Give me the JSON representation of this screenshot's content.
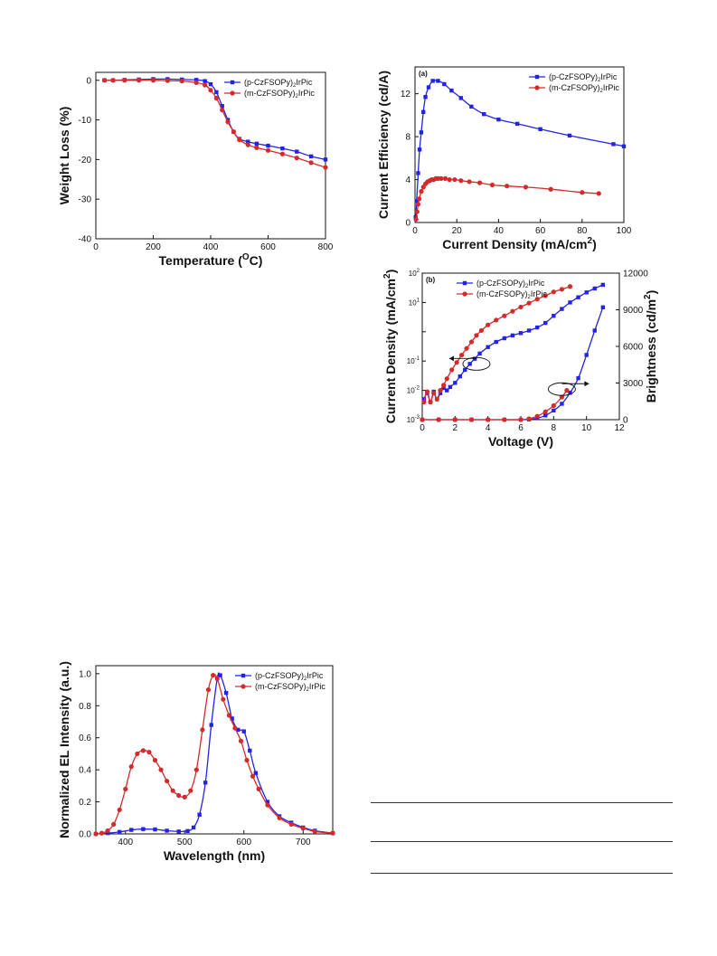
{
  "colors": {
    "blue": "#2323e6",
    "red": "#d42a2a",
    "axis": "#111111"
  },
  "chart_data": [
    {
      "id": "tga",
      "type": "line",
      "title": "",
      "xlabel": "Temperature (",
      "xlabel_sup": "O",
      "xlabel_tail": "C)",
      "ylabel": "Weight Loss (%)",
      "xlim": [
        0,
        800
      ],
      "ylim": [
        -40,
        2
      ],
      "xticks": [
        0,
        200,
        400,
        600,
        800
      ],
      "yticks": [
        0,
        -10,
        -20,
        -30,
        -40
      ],
      "legend": "top-right",
      "series": [
        {
          "name": "(p-CzFSOPy)",
          "sub": "2",
          "tail": "IrPic",
          "color": "#2323e6",
          "marker": "square",
          "x": [
            30,
            60,
            100,
            150,
            200,
            250,
            300,
            350,
            380,
            400,
            420,
            440,
            460,
            480,
            500,
            530,
            560,
            600,
            650,
            700,
            750,
            800
          ],
          "y": [
            0,
            0,
            0.1,
            0.2,
            0.3,
            0.3,
            0.2,
            0.1,
            -0.2,
            -1,
            -3,
            -6.5,
            -10,
            -13,
            -14.8,
            -15.5,
            -16,
            -16.5,
            -17.2,
            -18,
            -19.2,
            -20
          ]
        },
        {
          "name": "(m-CzFSOPy)",
          "sub": "2",
          "tail": "IrPic",
          "color": "#d42a2a",
          "marker": "circle",
          "x": [
            30,
            60,
            100,
            150,
            200,
            250,
            300,
            350,
            380,
            400,
            420,
            440,
            460,
            480,
            500,
            530,
            560,
            600,
            650,
            700,
            750,
            800
          ],
          "y": [
            0,
            0,
            0,
            0,
            0,
            -0.1,
            -0.2,
            -0.6,
            -1.2,
            -2.5,
            -4.5,
            -7.5,
            -10.5,
            -13,
            -15,
            -16.3,
            -17,
            -17.7,
            -18.6,
            -19.6,
            -20.8,
            -22
          ]
        }
      ]
    },
    {
      "id": "ce",
      "type": "line",
      "panel": "(a)",
      "title": "",
      "xlabel": "Current Density (mA/cm",
      "xlabel_sup": "2",
      "xlabel_tail": ")",
      "ylabel": "Current Efficiency (cd/A)",
      "xlim": [
        0,
        100
      ],
      "ylim": [
        0,
        14.5
      ],
      "xticks": [
        0,
        20,
        40,
        60,
        80,
        100
      ],
      "yticks": [
        0,
        4,
        8,
        12
      ],
      "legend": "top-right",
      "series": [
        {
          "name": "(p-CzFSOPy)",
          "sub": "2",
          "tail": "IrPic",
          "color": "#2323e6",
          "marker": "square",
          "x": [
            0.3,
            0.8,
            1.5,
            2.2,
            3.0,
            4.0,
            5.0,
            6.5,
            8.5,
            11,
            14,
            17.5,
            22,
            27,
            33,
            40,
            49,
            60,
            74,
            95,
            100
          ],
          "y": [
            0.5,
            2.0,
            4.6,
            6.8,
            8.4,
            10.3,
            11.7,
            12.6,
            13.2,
            13.2,
            12.9,
            12.3,
            11.6,
            10.8,
            10.1,
            9.6,
            9.2,
            8.7,
            8.1,
            7.3,
            7.1
          ]
        },
        {
          "name": "(m-CzFSOPy)",
          "sub": "2",
          "tail": "IrPic",
          "color": "#d42a2a",
          "marker": "circle",
          "x": [
            0.5,
            1,
            1.5,
            2,
            3,
            4,
            5,
            6,
            7,
            8,
            9,
            10,
            11,
            12.5,
            14.5,
            16.5,
            19,
            22,
            26,
            31,
            37,
            44,
            53,
            65,
            80,
            88
          ],
          "y": [
            0.3,
            1.0,
            1.7,
            2.2,
            2.9,
            3.3,
            3.6,
            3.8,
            3.9,
            4.0,
            4.0,
            4.1,
            4.1,
            4.1,
            4.1,
            4.0,
            4.0,
            3.9,
            3.8,
            3.7,
            3.5,
            3.4,
            3.3,
            3.1,
            2.8,
            2.7
          ]
        }
      ]
    },
    {
      "id": "jvl",
      "type": "line",
      "panel": "(b)",
      "title": "",
      "xlabel": "Voltage (V)",
      "ylabel": "Current Density (mA/cm",
      "ylabel_sup": "2",
      "ylabel_tail": ")",
      "ylabel2": "Brightness (cd/m",
      "ylabel2_sup": "2",
      "ylabel2_tail": ")",
      "xlim": [
        0,
        12
      ],
      "ylim_log": [
        -3,
        2
      ],
      "y2lim": [
        0,
        12000
      ],
      "xticks": [
        0,
        2,
        4,
        6,
        8,
        10,
        12
      ],
      "yticks_exp": [
        2,
        1,
        -1,
        -2,
        -3
      ],
      "y2ticks": [
        0,
        3000,
        6000,
        9000,
        12000
      ],
      "legend": "top-left",
      "series": [
        {
          "name": "(p-CzFSOPy)",
          "sub": "2",
          "tail": "IrPic",
          "color": "#2323e6",
          "marker": "square",
          "axis": "left",
          "x": [
            0.1,
            0.3,
            0.5,
            0.7,
            0.9,
            1.1,
            1.3,
            1.5,
            1.7,
            2.0,
            2.3,
            2.6,
            2.9,
            3.2,
            3.5,
            4.0,
            4.5,
            5.0,
            5.5,
            6.0,
            6.5,
            7.0,
            7.5,
            8.0,
            8.5,
            9.0,
            9.5,
            10.0,
            10.5,
            11.0
          ],
          "y": [
            0.005,
            0.008,
            0.004,
            0.009,
            0.005,
            0.008,
            0.012,
            0.01,
            0.013,
            0.018,
            0.03,
            0.05,
            0.08,
            0.12,
            0.18,
            0.3,
            0.45,
            0.6,
            0.75,
            0.9,
            1.1,
            1.4,
            2.0,
            3.5,
            6.0,
            10,
            15,
            22,
            30,
            40
          ]
        },
        {
          "name": "(p-CzFSOPy)",
          "sub": "2",
          "tail": "IrPic",
          "color": "#2323e6",
          "marker": "square",
          "axis": "right",
          "legend": false,
          "x": [
            0,
            1,
            2,
            3,
            4,
            5,
            6,
            6.5,
            7,
            7.5,
            8,
            8.5,
            9,
            9.5,
            10,
            10.5,
            11
          ],
          "y": [
            0,
            0,
            0,
            0,
            0,
            0,
            0,
            20,
            120,
            350,
            750,
            1300,
            2200,
            3400,
            5300,
            7300,
            9200
          ]
        },
        {
          "name": "(m-CzFSOPy)",
          "sub": "2",
          "tail": "IrPic",
          "color": "#d42a2a",
          "marker": "circle",
          "axis": "left",
          "x": [
            0.1,
            0.3,
            0.5,
            0.7,
            0.9,
            1.1,
            1.3,
            1.5,
            1.8,
            2.1,
            2.4,
            2.7,
            3.0,
            3.3,
            3.6,
            4.0,
            4.5,
            5.0,
            5.5,
            6.0,
            6.5,
            7.0,
            7.5,
            8.0,
            8.5,
            9.0
          ],
          "y": [
            0.004,
            0.009,
            0.004,
            0.008,
            0.005,
            0.01,
            0.015,
            0.025,
            0.05,
            0.09,
            0.16,
            0.27,
            0.45,
            0.75,
            1.1,
            1.7,
            2.5,
            3.5,
            5.0,
            7.0,
            9.5,
            13,
            17,
            23,
            28,
            35
          ]
        },
        {
          "name": "(m-CzFSOPy)",
          "sub": "2",
          "tail": "IrPic",
          "color": "#d42a2a",
          "marker": "circle",
          "axis": "right",
          "legend": false,
          "x": [
            0,
            1,
            2,
            3,
            4,
            5,
            6,
            6.5,
            7,
            7.5,
            8,
            8.5,
            8.8
          ],
          "y": [
            0,
            0,
            0,
            0,
            0,
            0,
            0,
            80,
            280,
            650,
            1150,
            1850,
            2400
          ]
        }
      ],
      "annotations": [
        {
          "type": "ellipse-arrow",
          "direction": "left",
          "target": "left-axis",
          "at": [
            3.3,
            0.08
          ]
        },
        {
          "type": "ellipse-arrow",
          "direction": "right",
          "target": "right-axis",
          "at": [
            8.5,
            2500
          ]
        }
      ]
    },
    {
      "id": "el",
      "type": "line",
      "title": "",
      "xlabel": "Wavelength (nm)",
      "ylabel": "Normalized EL Intensity (a.u.)",
      "xlim": [
        350,
        750
      ],
      "ylim": [
        0,
        1.05
      ],
      "xticks": [
        400,
        500,
        600,
        700
      ],
      "yticks": [
        0.0,
        0.2,
        0.4,
        0.6,
        0.8,
        1.0
      ],
      "legend": "top-right",
      "series": [
        {
          "name": "(p-CzFSOPy)",
          "sub": "2",
          "tail": "IrPic",
          "color": "#2323e6",
          "marker": "square",
          "x": [
            350,
            370,
            390,
            410,
            430,
            450,
            470,
            490,
            505,
            515,
            525,
            535,
            545,
            555,
            560,
            570,
            580,
            590,
            600,
            610,
            620,
            640,
            660,
            680,
            700,
            720,
            750
          ],
          "y": [
            0,
            0.005,
            0.012,
            0.025,
            0.03,
            0.028,
            0.02,
            0.015,
            0.018,
            0.04,
            0.12,
            0.32,
            0.68,
            0.97,
            0.99,
            0.88,
            0.72,
            0.65,
            0.64,
            0.52,
            0.38,
            0.2,
            0.11,
            0.07,
            0.04,
            0.02,
            0.005
          ]
        },
        {
          "name": "(m-CzFSOPy)",
          "sub": "2",
          "tail": "IrPic",
          "color": "#d42a2a",
          "marker": "circle",
          "x": [
            350,
            360,
            370,
            380,
            390,
            400,
            410,
            420,
            430,
            440,
            450,
            460,
            470,
            480,
            490,
            500,
            510,
            520,
            530,
            540,
            548,
            555,
            565,
            575,
            585,
            595,
            605,
            615,
            625,
            640,
            660,
            680,
            700,
            720,
            750
          ],
          "y": [
            0,
            0.005,
            0.02,
            0.06,
            0.15,
            0.28,
            0.42,
            0.5,
            0.52,
            0.51,
            0.46,
            0.4,
            0.33,
            0.27,
            0.24,
            0.23,
            0.27,
            0.4,
            0.65,
            0.9,
            0.99,
            0.97,
            0.84,
            0.74,
            0.66,
            0.58,
            0.46,
            0.36,
            0.28,
            0.18,
            0.1,
            0.06,
            0.035,
            0.015,
            0.005
          ]
        }
      ]
    }
  ]
}
